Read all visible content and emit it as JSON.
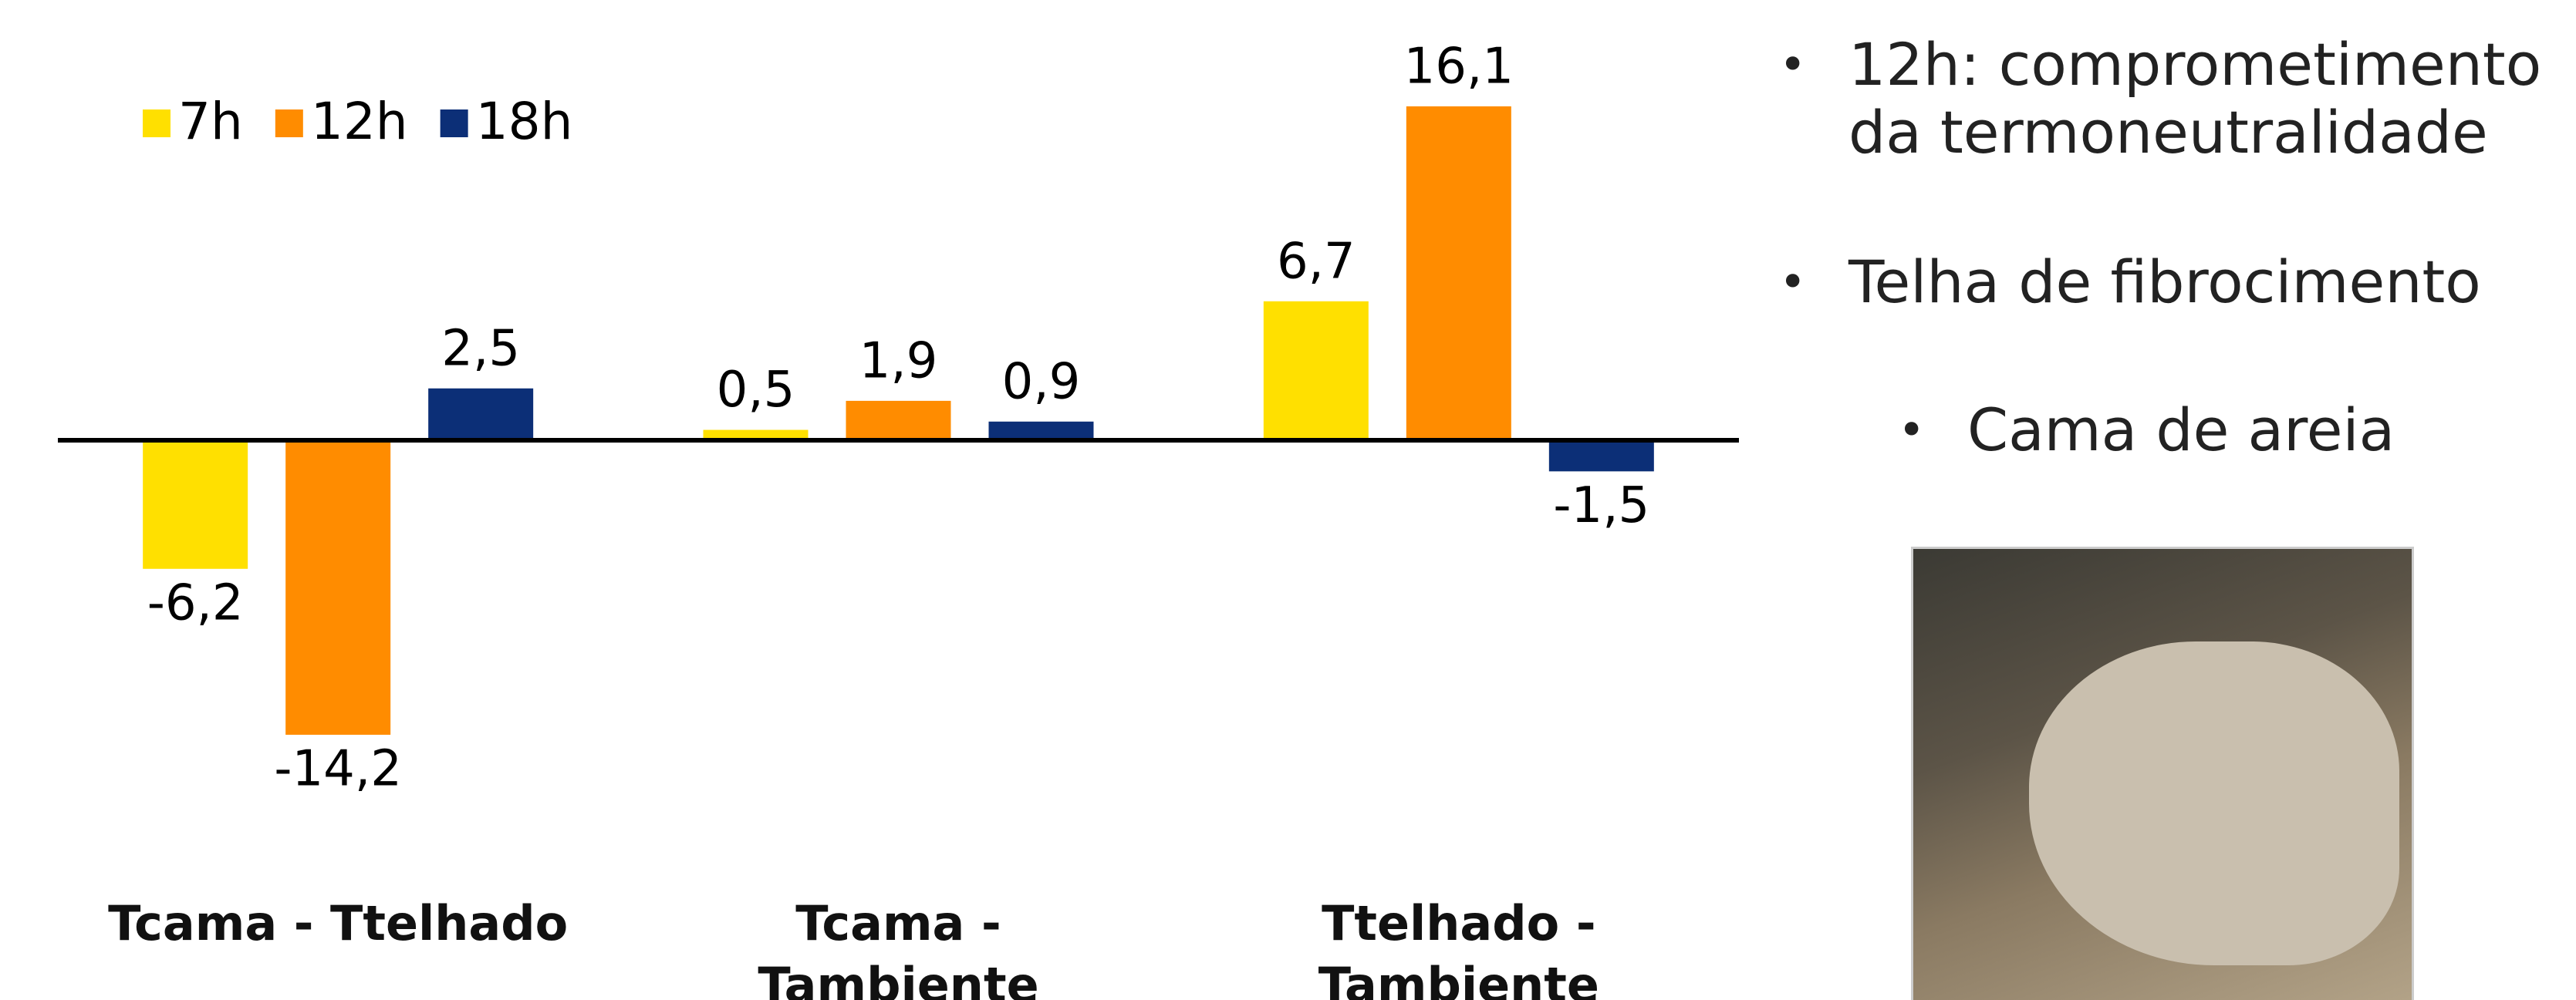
{
  "chart_data": {
    "type": "bar",
    "categories": [
      "Tcama - Ttelhado",
      "Tcama - Tambiente",
      "Ttelhado - Tambiente"
    ],
    "series": [
      {
        "name": "7h",
        "color": "#ffe000",
        "values": [
          -6.2,
          0.5,
          6.7
        ],
        "value_labels": [
          "-6,2",
          "0,5",
          "6,7"
        ]
      },
      {
        "name": "12h",
        "color": "#ff8c00",
        "values": [
          -14.2,
          1.9,
          16.1
        ],
        "value_labels": [
          "-14,2",
          "1,9",
          "16,1"
        ]
      },
      {
        "name": "18h",
        "color": "#0c2f77",
        "values": [
          2.5,
          0.9,
          -1.5
        ],
        "value_labels": [
          "2,5",
          "0,9",
          "-1,5"
        ]
      }
    ],
    "ylim": [
      -20,
      20
    ],
    "legend": "top-left"
  },
  "bullets": [
    "12h: comprometimento da termoneutralidade",
    "Telha de fibrocimento",
    "Cama de areia"
  ]
}
